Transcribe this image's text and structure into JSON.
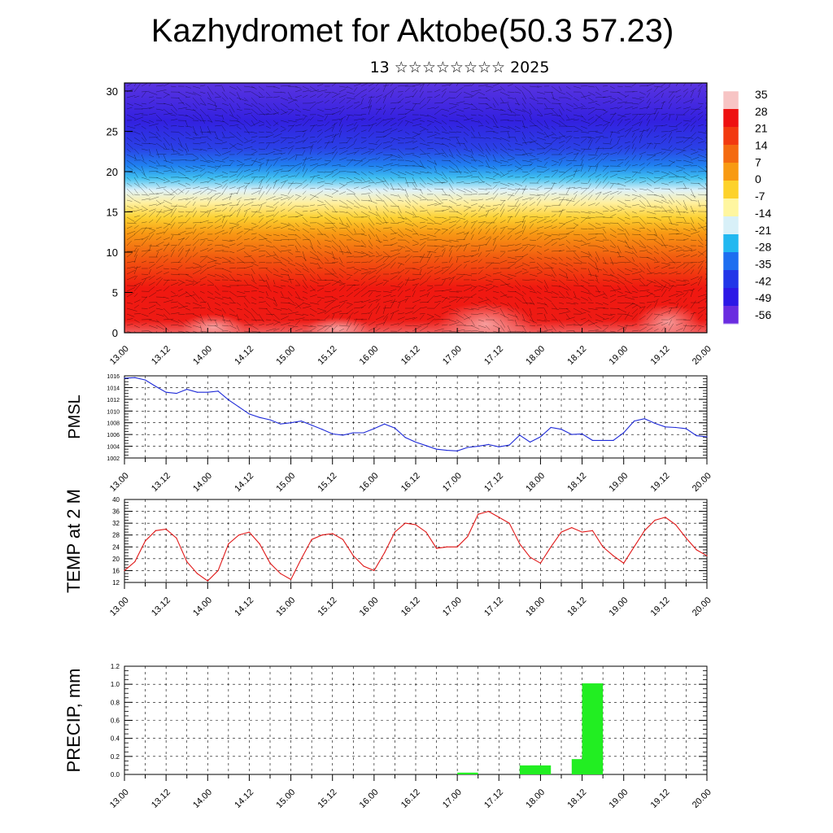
{
  "title": "Kazhydromet for Aktobe(50.3 57.23)",
  "subtitle": "13 ☆☆☆☆☆☆☆☆ 2025",
  "time_ticks": [
    "13.00",
    "13.12",
    "14.00",
    "14.12",
    "15.00",
    "15.12",
    "16.00",
    "16.12",
    "17.00",
    "17.12",
    "18.00",
    "18.12",
    "19.00",
    "19.12",
    "20.00"
  ],
  "chart_data": [
    {
      "type": "heatmap",
      "name": "cross-section",
      "y_ticks": [
        "0",
        "5",
        "10",
        "15",
        "20",
        "25",
        "30"
      ],
      "ylim": [
        0,
        31
      ],
      "color_levels": [
        35,
        28,
        21,
        14,
        7,
        0,
        -7,
        -14,
        -21,
        -28,
        -35,
        -42,
        -49,
        -56
      ],
      "color_labels": [
        "35",
        "28",
        "21",
        "14",
        "7",
        "0",
        "-7",
        "-14",
        "-21",
        "-28",
        "-35",
        "-42",
        "-49",
        "-56"
      ],
      "colors": [
        "#f7c4c4",
        "#ee1111",
        "#f23a10",
        "#f46a10",
        "#f89a12",
        "#fdd22a",
        "#fff6a0",
        "#d8f0f8",
        "#22b8f0",
        "#1e6ef0",
        "#2236e8",
        "#2d18e6",
        "#6a2ce0"
      ],
      "description_values": {
        "surface_temp_range": [
          21,
          35
        ],
        "top_temp_range": [
          -56,
          -49
        ]
      }
    },
    {
      "type": "line",
      "name": "PMSL",
      "ylabel": "PMSL",
      "ylim": [
        1002,
        1016
      ],
      "y_ticks": [
        "1016",
        "1014",
        "1012",
        "1010",
        "1008",
        "1006",
        "1004",
        "1002"
      ],
      "color": "#1e2ad8",
      "x": [
        0,
        3,
        6,
        9,
        12,
        15,
        18,
        21,
        24,
        27,
        30,
        33,
        36,
        39,
        42,
        45,
        48,
        51,
        54,
        57,
        60,
        63,
        66,
        69,
        72,
        75,
        78,
        81,
        84,
        87,
        90,
        93,
        96,
        99,
        102,
        105,
        108,
        111,
        114,
        117,
        120,
        123,
        126,
        129,
        132,
        135,
        138,
        141,
        144,
        147,
        150,
        153,
        156,
        159,
        162,
        165,
        168
      ],
      "values": [
        1015.6,
        1015.7,
        1015.3,
        1014.2,
        1013.2,
        1013.0,
        1013.7,
        1013.2,
        1013.2,
        1013.4,
        1011.9,
        1010.7,
        1009.5,
        1008.9,
        1008.5,
        1007.8,
        1008.0,
        1008.3,
        1007.6,
        1006.9,
        1006.1,
        1005.9,
        1006.3,
        1006.3,
        1007.0,
        1007.8,
        1007.1,
        1005.5,
        1004.7,
        1004.1,
        1003.5,
        1003.3,
        1003.2,
        1003.8,
        1004.0,
        1004.3,
        1003.9,
        1004.2,
        1005.9,
        1004.7,
        1005.6,
        1007.2,
        1006.9,
        1006.0,
        1006.1,
        1005.0,
        1005.0,
        1005.0,
        1006.3,
        1008.3,
        1008.7,
        1007.9,
        1007.3,
        1007.2,
        1007.0,
        1005.8,
        1005.6
      ]
    },
    {
      "type": "line",
      "name": "TEMP at 2 M",
      "ylabel": "TEMP at 2 M",
      "ylim": [
        12,
        40
      ],
      "y_ticks": [
        "40",
        "36",
        "32",
        "28",
        "24",
        "20",
        "16",
        "12"
      ],
      "color": "#e01818",
      "x": [
        0,
        3,
        6,
        9,
        12,
        15,
        18,
        21,
        24,
        27,
        30,
        33,
        36,
        39,
        42,
        45,
        48,
        51,
        54,
        57,
        60,
        63,
        66,
        69,
        72,
        75,
        78,
        81,
        84,
        87,
        90,
        93,
        96,
        99,
        102,
        105,
        108,
        111,
        114,
        117,
        120,
        123,
        126,
        129,
        132,
        135,
        138,
        141,
        144,
        147,
        150,
        153,
        156,
        159,
        162,
        165,
        168
      ],
      "values": [
        16,
        19,
        26,
        29.5,
        30,
        27,
        19,
        15,
        12.5,
        16,
        25,
        28,
        29,
        25,
        18.5,
        15,
        13,
        20,
        26.5,
        28,
        28.5,
        26.5,
        21,
        17.5,
        16,
        22,
        29,
        32,
        31.5,
        29,
        23.5,
        24,
        24,
        27.5,
        35,
        36,
        34,
        32,
        25,
        20.5,
        18.5,
        24,
        29,
        30.5,
        29,
        29.5,
        24,
        21,
        18.5,
        24,
        29.5,
        33,
        34,
        31.5,
        27,
        23,
        21
      ]
    },
    {
      "type": "bar",
      "name": "PRECIP, mm",
      "ylabel": "PRECIP, mm",
      "ylim": [
        0,
        1.2
      ],
      "y_ticks": [
        "1.2",
        "1.0",
        "0.8",
        "0.6",
        "0.4",
        "0.2",
        "0.0"
      ],
      "color": "#22ee22",
      "bars": [
        {
          "x": 99,
          "value": 0.02
        },
        {
          "x": 117,
          "value": 0.1
        },
        {
          "x": 120,
          "value": 0.1
        },
        {
          "x": 132,
          "value": 0.17
        },
        {
          "x": 135,
          "value": 1.01
        }
      ]
    }
  ]
}
